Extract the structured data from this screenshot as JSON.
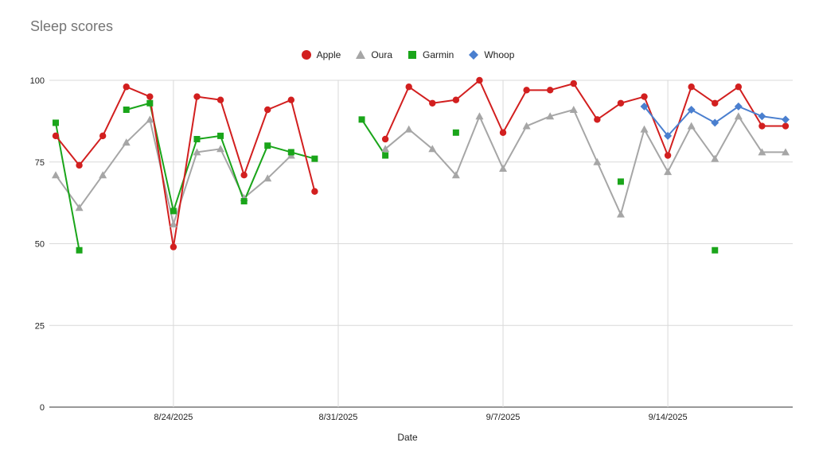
{
  "chart_data": {
    "type": "line",
    "title": "Sleep scores",
    "xlabel": "Date",
    "ylabel": "",
    "ylim": [
      0,
      100
    ],
    "yticks": [
      "0",
      "25",
      "50",
      "75",
      "100"
    ],
    "xlim": [
      "2025-08-19",
      "2025-09-19"
    ],
    "xticks": [
      {
        "date": "2025-08-24",
        "label": "8/24/2025"
      },
      {
        "date": "2025-08-31",
        "label": "8/31/2025"
      },
      {
        "date": "2025-09-07",
        "label": "9/7/2025"
      },
      {
        "date": "2025-09-14",
        "label": "9/14/2025"
      }
    ],
    "grid": true,
    "legend_position": "top",
    "series": [
      {
        "name": "Apple",
        "color": "#d21f1f",
        "marker": "circle",
        "points": [
          {
            "date": "2025-08-19",
            "value": 83
          },
          {
            "date": "2025-08-20",
            "value": 74
          },
          {
            "date": "2025-08-21",
            "value": 83
          },
          {
            "date": "2025-08-22",
            "value": 98
          },
          {
            "date": "2025-08-23",
            "value": 95
          },
          {
            "date": "2025-08-24",
            "value": 49
          },
          {
            "date": "2025-08-25",
            "value": 95
          },
          {
            "date": "2025-08-26",
            "value": 94
          },
          {
            "date": "2025-08-27",
            "value": 71
          },
          {
            "date": "2025-08-28",
            "value": 91
          },
          {
            "date": "2025-08-29",
            "value": 94
          },
          {
            "date": "2025-08-30",
            "value": 66
          },
          {
            "date": "2025-09-02",
            "value": 82
          },
          {
            "date": "2025-09-03",
            "value": 98
          },
          {
            "date": "2025-09-04",
            "value": 93
          },
          {
            "date": "2025-09-05",
            "value": 94
          },
          {
            "date": "2025-09-06",
            "value": 100
          },
          {
            "date": "2025-09-07",
            "value": 84
          },
          {
            "date": "2025-09-08",
            "value": 97
          },
          {
            "date": "2025-09-09",
            "value": 97
          },
          {
            "date": "2025-09-10",
            "value": 99
          },
          {
            "date": "2025-09-11",
            "value": 88
          },
          {
            "date": "2025-09-12",
            "value": 93
          },
          {
            "date": "2025-09-13",
            "value": 95
          },
          {
            "date": "2025-09-14",
            "value": 77
          },
          {
            "date": "2025-09-15",
            "value": 98
          },
          {
            "date": "2025-09-16",
            "value": 93
          },
          {
            "date": "2025-09-17",
            "value": 98
          },
          {
            "date": "2025-09-18",
            "value": 86
          },
          {
            "date": "2025-09-19",
            "value": 86
          }
        ]
      },
      {
        "name": "Oura",
        "color": "#a6a6a6",
        "marker": "triangle",
        "points": [
          {
            "date": "2025-08-19",
            "value": 71
          },
          {
            "date": "2025-08-20",
            "value": 61
          },
          {
            "date": "2025-08-21",
            "value": 71
          },
          {
            "date": "2025-08-22",
            "value": 81
          },
          {
            "date": "2025-08-23",
            "value": 88
          },
          {
            "date": "2025-08-24",
            "value": 56
          },
          {
            "date": "2025-08-25",
            "value": 78
          },
          {
            "date": "2025-08-26",
            "value": 79
          },
          {
            "date": "2025-08-27",
            "value": 64
          },
          {
            "date": "2025-08-28",
            "value": 70
          },
          {
            "date": "2025-08-29",
            "value": 77
          },
          {
            "date": "2025-09-02",
            "value": 79
          },
          {
            "date": "2025-09-03",
            "value": 85
          },
          {
            "date": "2025-09-04",
            "value": 79
          },
          {
            "date": "2025-09-05",
            "value": 71
          },
          {
            "date": "2025-09-06",
            "value": 89
          },
          {
            "date": "2025-09-07",
            "value": 73
          },
          {
            "date": "2025-09-08",
            "value": 86
          },
          {
            "date": "2025-09-09",
            "value": 89
          },
          {
            "date": "2025-09-10",
            "value": 91
          },
          {
            "date": "2025-09-11",
            "value": 75
          },
          {
            "date": "2025-09-12",
            "value": 59
          },
          {
            "date": "2025-09-13",
            "value": 85
          },
          {
            "date": "2025-09-14",
            "value": 72
          },
          {
            "date": "2025-09-15",
            "value": 86
          },
          {
            "date": "2025-09-16",
            "value": 76
          },
          {
            "date": "2025-09-17",
            "value": 89
          },
          {
            "date": "2025-09-18",
            "value": 78
          },
          {
            "date": "2025-09-19",
            "value": 78
          }
        ]
      },
      {
        "name": "Garmin",
        "color": "#1aa51a",
        "marker": "square",
        "points": [
          {
            "date": "2025-08-19",
            "value": 87
          },
          {
            "date": "2025-08-20",
            "value": 48
          },
          {
            "date": "2025-08-22",
            "value": 91
          },
          {
            "date": "2025-08-23",
            "value": 93
          },
          {
            "date": "2025-08-24",
            "value": 60
          },
          {
            "date": "2025-08-25",
            "value": 82
          },
          {
            "date": "2025-08-26",
            "value": 83
          },
          {
            "date": "2025-08-27",
            "value": 63
          },
          {
            "date": "2025-08-28",
            "value": 80
          },
          {
            "date": "2025-08-29",
            "value": 78
          },
          {
            "date": "2025-08-30",
            "value": 76
          },
          {
            "date": "2025-09-01",
            "value": 88
          },
          {
            "date": "2025-09-02",
            "value": 77
          },
          {
            "date": "2025-09-05",
            "value": 84
          },
          {
            "date": "2025-09-12",
            "value": 69
          },
          {
            "date": "2025-09-16",
            "value": 48
          }
        ]
      },
      {
        "name": "Whoop",
        "color": "#4a7fcf",
        "marker": "diamond",
        "points": [
          {
            "date": "2025-09-13",
            "value": 92
          },
          {
            "date": "2025-09-14",
            "value": 83
          },
          {
            "date": "2025-09-15",
            "value": 91
          },
          {
            "date": "2025-09-16",
            "value": 87
          },
          {
            "date": "2025-09-17",
            "value": 92
          },
          {
            "date": "2025-09-18",
            "value": 89
          },
          {
            "date": "2025-09-19",
            "value": 88
          }
        ]
      }
    ]
  }
}
